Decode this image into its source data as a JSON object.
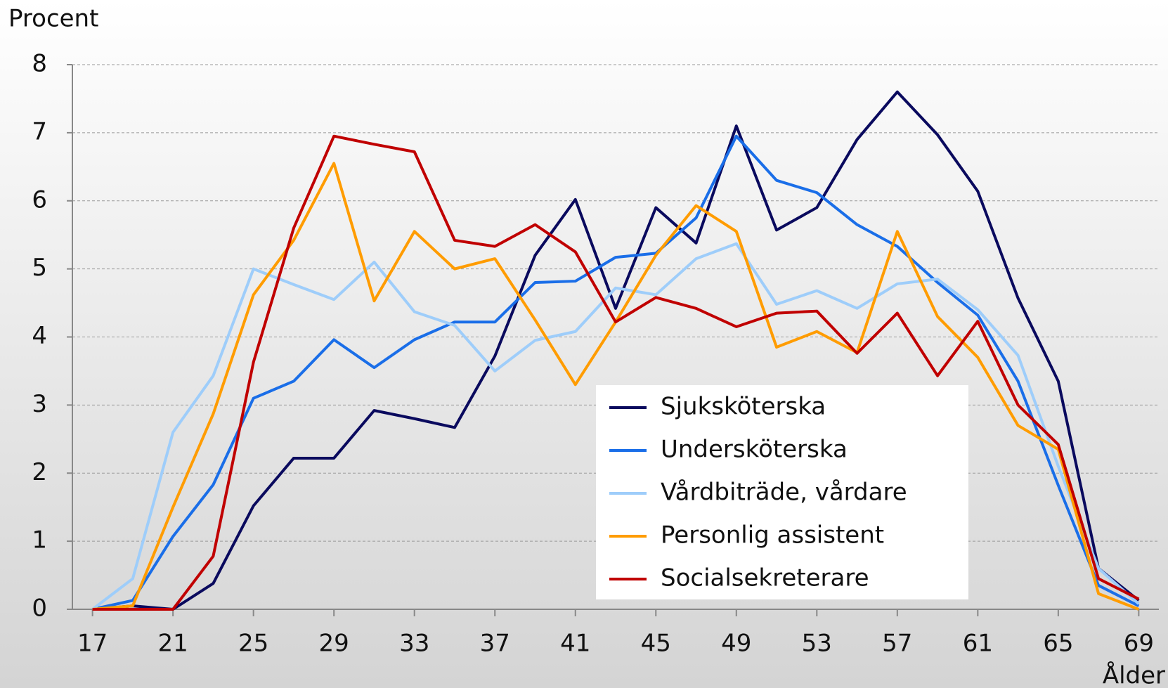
{
  "chart_data": {
    "type": "line",
    "y_label": "Procent",
    "x_label": "Ålder",
    "x": [
      17,
      19,
      21,
      23,
      25,
      27,
      29,
      31,
      33,
      35,
      37,
      39,
      41,
      43,
      45,
      47,
      49,
      51,
      53,
      55,
      57,
      59,
      61,
      63,
      65,
      67,
      69
    ],
    "xlim": [
      16,
      70
    ],
    "xticks": [
      17,
      21,
      25,
      29,
      33,
      37,
      41,
      45,
      49,
      53,
      57,
      61,
      65,
      69
    ],
    "ylim": [
      0,
      8
    ],
    "yticks": [
      0,
      1,
      2,
      3,
      4,
      5,
      6,
      7,
      8
    ],
    "grid": true,
    "legend": "lower right",
    "series": [
      {
        "name": "Sjuksköterska",
        "color": "#0a0a5e",
        "values": [
          0,
          0.05,
          0,
          0.38,
          1.52,
          2.22,
          2.22,
          2.92,
          2.8,
          2.67,
          3.72,
          5.2,
          6.02,
          4.42,
          5.9,
          5.38,
          7.1,
          5.57,
          5.9,
          6.9,
          7.6,
          6.97,
          6.14,
          4.57,
          3.35,
          0.6,
          0.13
        ]
      },
      {
        "name": "Undersköterska",
        "color": "#1a6ee8",
        "values": [
          0,
          0.13,
          1.07,
          1.83,
          3.1,
          3.35,
          3.96,
          3.55,
          3.96,
          4.22,
          4.22,
          4.8,
          4.82,
          5.17,
          5.23,
          5.75,
          6.95,
          6.3,
          6.12,
          5.65,
          5.33,
          4.8,
          4.32,
          3.35,
          1.82,
          0.35,
          0.05
        ]
      },
      {
        "name": "Vårdbiträde, vårdare",
        "color": "#9ecdfa",
        "values": [
          0,
          0.45,
          2.6,
          3.43,
          5.0,
          4.77,
          4.55,
          5.1,
          4.37,
          4.17,
          3.5,
          3.95,
          4.08,
          4.72,
          4.62,
          5.15,
          5.37,
          4.48,
          4.68,
          4.42,
          4.78,
          4.85,
          4.4,
          3.73,
          2.1,
          0.6,
          0.08
        ]
      },
      {
        "name": "Personlig assistent",
        "color": "#ff9c00",
        "values": [
          0,
          0.05,
          1.5,
          2.87,
          4.62,
          5.42,
          6.55,
          4.53,
          5.55,
          5.0,
          5.15,
          4.25,
          3.3,
          4.22,
          5.2,
          5.93,
          5.55,
          3.85,
          4.08,
          3.77,
          5.55,
          4.3,
          3.7,
          2.7,
          2.35,
          0.23,
          0
        ]
      },
      {
        "name": "Socialsekreterare",
        "color": "#c00000",
        "values": [
          0,
          0,
          0,
          0.78,
          3.63,
          5.6,
          6.95,
          6.83,
          6.72,
          5.42,
          5.33,
          5.65,
          5.25,
          4.22,
          4.58,
          4.42,
          4.15,
          4.35,
          4.38,
          3.76,
          4.35,
          3.43,
          4.23,
          3.0,
          2.42,
          0.45,
          0.15
        ]
      }
    ]
  }
}
